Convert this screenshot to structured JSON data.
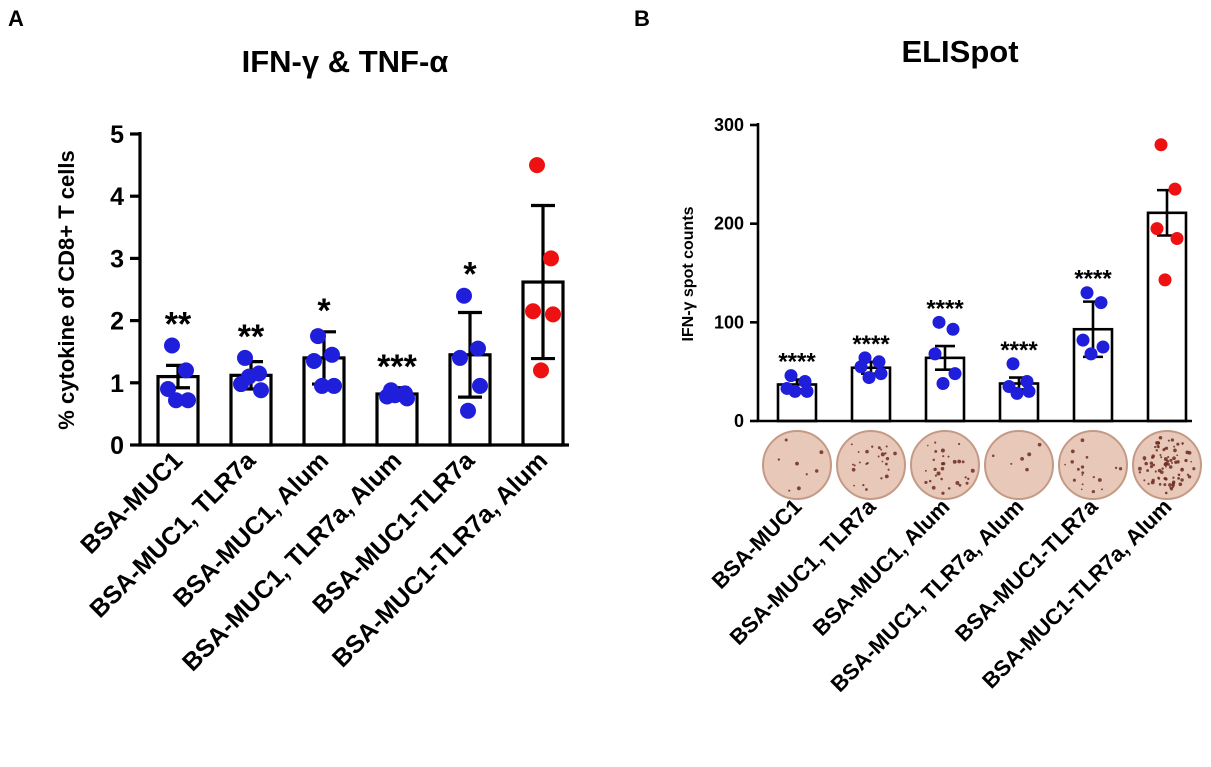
{
  "panels": {
    "a": {
      "label": "A"
    },
    "b": {
      "label": "B"
    }
  },
  "colors": {
    "blue": "#1f1fdb",
    "red": "#ee1111",
    "bar_fill": "#ffffff",
    "axis": "#000000",
    "well_fill": "#e8c8b8",
    "well_edge": "#c49a86",
    "spot": "#6b2a1e"
  },
  "chart_data": [
    {
      "type": "bar",
      "panel": "A",
      "title": "IFN-γ & TNF-α",
      "ylabel": "% cytokine of CD8+ T cells",
      "xlabel": "",
      "ylim": [
        0,
        5
      ],
      "yticks": [
        "0",
        "1",
        "2",
        "3",
        "4",
        "5"
      ],
      "categories": [
        "BSA-MUC1",
        "BSA-MUC1, TLR7a",
        "BSA-MUC1, Alum",
        "BSA-MUC1, TLR7a, Alum",
        "BSA-MUC1-TLR7a",
        "BSA-MUC1-TLR7a, Alum"
      ],
      "values": [
        1.1,
        1.12,
        1.4,
        0.82,
        1.45,
        2.62
      ],
      "error": [
        0.18,
        0.22,
        0.42,
        0.1,
        0.68,
        1.23
      ],
      "points": [
        [
          1.6,
          1.2,
          0.9,
          0.72,
          0.72
        ],
        [
          1.4,
          1.15,
          0.98,
          0.88,
          1.1
        ],
        [
          1.75,
          1.45,
          1.35,
          0.95,
          0.95
        ],
        [
          0.88,
          0.83,
          0.78,
          0.75,
          0.8
        ],
        [
          2.4,
          1.55,
          1.4,
          0.95,
          0.55
        ],
        [
          4.5,
          3.0,
          2.15,
          2.1,
          1.2
        ]
      ],
      "point_colors": [
        "blue",
        "blue",
        "blue",
        "blue",
        "blue",
        "red"
      ],
      "significance": [
        "**",
        "**",
        "*",
        "***",
        "*",
        ""
      ]
    },
    {
      "type": "bar",
      "panel": "B",
      "title": "ELISpot",
      "ylabel": "IFN-γ spot counts",
      "xlabel": "",
      "ylim": [
        0,
        300
      ],
      "yticks": [
        "0",
        "100",
        "200",
        "300"
      ],
      "categories": [
        "BSA-MUC1",
        "BSA-MUC1, TLR7a",
        "BSA-MUC1, Alum",
        "BSA-MUC1, TLR7a, Alum",
        "BSA-MUC1-TLR7a",
        "BSA-MUC1-TLR7a, Alum"
      ],
      "values": [
        37,
        54,
        64,
        38,
        93,
        211
      ],
      "error": [
        5,
        6,
        12,
        6,
        28,
        23
      ],
      "points": [
        [
          46,
          40,
          33,
          30,
          30
        ],
        [
          64,
          60,
          55,
          48,
          44
        ],
        [
          100,
          93,
          68,
          48,
          38
        ],
        [
          58,
          40,
          35,
          30,
          28
        ],
        [
          130,
          120,
          82,
          75,
          68
        ],
        [
          280,
          235,
          195,
          185,
          143
        ]
      ],
      "point_colors": [
        "blue",
        "blue",
        "blue",
        "blue",
        "blue",
        "red"
      ],
      "significance": [
        "****",
        "****",
        "****",
        "****",
        "****",
        ""
      ],
      "well_spot_density": [
        8,
        26,
        30,
        6,
        18,
        85
      ]
    }
  ]
}
